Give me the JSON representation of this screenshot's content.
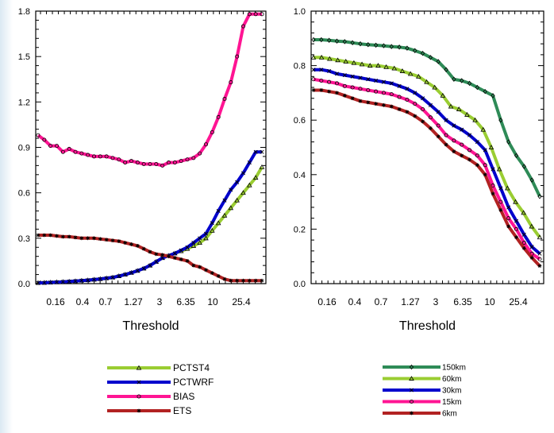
{
  "chart_data": [
    {
      "type": "line",
      "title": "",
      "xlabel": "Threshold",
      "ylabel": "",
      "x_tick_labels": [
        "0.16",
        "0.4",
        "0.7",
        "1.27",
        "3",
        "6.35",
        "10",
        "25.4"
      ],
      "y_ticks": [
        "0.0",
        "0.3",
        "0.6",
        "0.9",
        "1.2",
        "1.5",
        "1.8"
      ],
      "ylim": [
        0,
        1.8
      ],
      "grid": false,
      "legend_position": "below",
      "series": [
        {
          "name": "PCTST4",
          "color": "#9acd32",
          "marker": "triangle",
          "values": [
            0.005,
            0.006,
            0.008,
            0.01,
            0.012,
            0.014,
            0.017,
            0.02,
            0.023,
            0.027,
            0.031,
            0.036,
            0.041,
            0.05,
            0.06,
            0.072,
            0.085,
            0.1,
            0.12,
            0.145,
            0.17,
            0.185,
            0.2,
            0.215,
            0.23,
            0.25,
            0.27,
            0.3,
            0.35,
            0.4,
            0.45,
            0.5,
            0.55,
            0.6,
            0.65,
            0.7,
            0.77
          ]
        },
        {
          "name": "PCTWRF",
          "color": "#0000cd",
          "marker": "x",
          "values": [
            0.005,
            0.006,
            0.008,
            0.01,
            0.012,
            0.014,
            0.017,
            0.02,
            0.023,
            0.027,
            0.031,
            0.036,
            0.041,
            0.05,
            0.06,
            0.072,
            0.085,
            0.1,
            0.12,
            0.145,
            0.17,
            0.185,
            0.2,
            0.22,
            0.24,
            0.27,
            0.3,
            0.33,
            0.4,
            0.48,
            0.55,
            0.62,
            0.67,
            0.73,
            0.8,
            0.87,
            0.87
          ]
        },
        {
          "name": "BIAS",
          "color": "#ff1493",
          "marker": "circle",
          "values": [
            0.98,
            0.95,
            0.91,
            0.91,
            0.87,
            0.89,
            0.87,
            0.86,
            0.85,
            0.84,
            0.84,
            0.84,
            0.83,
            0.82,
            0.8,
            0.81,
            0.8,
            0.79,
            0.79,
            0.79,
            0.78,
            0.8,
            0.8,
            0.81,
            0.82,
            0.83,
            0.86,
            0.92,
            1.0,
            1.1,
            1.22,
            1.33,
            1.5,
            1.7,
            1.78,
            1.78,
            1.78
          ]
        },
        {
          "name": "ETS",
          "color": "#b22222",
          "marker": "asterisk",
          "values": [
            0.32,
            0.32,
            0.32,
            0.315,
            0.31,
            0.31,
            0.305,
            0.3,
            0.3,
            0.3,
            0.295,
            0.29,
            0.285,
            0.28,
            0.27,
            0.26,
            0.25,
            0.23,
            0.21,
            0.195,
            0.19,
            0.18,
            0.17,
            0.16,
            0.15,
            0.12,
            0.11,
            0.09,
            0.07,
            0.05,
            0.03,
            0.02,
            0.02,
            0.02,
            0.02,
            0.02,
            0.02
          ]
        }
      ]
    },
    {
      "type": "line",
      "title": "",
      "xlabel": "Threshold",
      "ylabel": "",
      "x_tick_labels": [
        "0.16",
        "0.4",
        "0.7",
        "1.27",
        "3",
        "6.35",
        "10",
        "25.4"
      ],
      "y_ticks": [
        "0.0",
        "0.2",
        "0.4",
        "0.6",
        "0.8",
        "1.0"
      ],
      "ylim": [
        0,
        1.0
      ],
      "grid": false,
      "legend_position": "below",
      "series": [
        {
          "name": "150km",
          "color": "#2e8b57",
          "marker": "diamond",
          "values": [
            0.895,
            0.895,
            0.893,
            0.89,
            0.888,
            0.884,
            0.88,
            0.877,
            0.875,
            0.873,
            0.87,
            0.868,
            0.864,
            0.855,
            0.845,
            0.83,
            0.815,
            0.785,
            0.75,
            0.745,
            0.735,
            0.72,
            0.705,
            0.69,
            0.6,
            0.52,
            0.47,
            0.43,
            0.38,
            0.32
          ]
        },
        {
          "name": "60km",
          "color": "#9acd32",
          "marker": "triangle",
          "values": [
            0.83,
            0.83,
            0.825,
            0.82,
            0.815,
            0.81,
            0.805,
            0.8,
            0.8,
            0.795,
            0.79,
            0.78,
            0.77,
            0.76,
            0.74,
            0.72,
            0.69,
            0.65,
            0.64,
            0.62,
            0.6,
            0.565,
            0.5,
            0.42,
            0.35,
            0.3,
            0.26,
            0.21,
            0.17
          ]
        },
        {
          "name": "30km",
          "color": "#0000cd",
          "marker": "x",
          "values": [
            0.785,
            0.785,
            0.78,
            0.77,
            0.765,
            0.76,
            0.755,
            0.75,
            0.745,
            0.74,
            0.735,
            0.725,
            0.715,
            0.7,
            0.68,
            0.655,
            0.63,
            0.6,
            0.58,
            0.565,
            0.545,
            0.52,
            0.49,
            0.42,
            0.35,
            0.28,
            0.23,
            0.18,
            0.135,
            0.11
          ]
        },
        {
          "name": "15km",
          "color": "#ff1493",
          "marker": "circle",
          "values": [
            0.75,
            0.745,
            0.74,
            0.735,
            0.725,
            0.72,
            0.715,
            0.71,
            0.705,
            0.7,
            0.695,
            0.685,
            0.675,
            0.66,
            0.64,
            0.61,
            0.58,
            0.545,
            0.525,
            0.51,
            0.49,
            0.47,
            0.435,
            0.36,
            0.3,
            0.24,
            0.2,
            0.15,
            0.11,
            0.09
          ]
        },
        {
          "name": "6km",
          "color": "#b22222",
          "marker": "asterisk",
          "values": [
            0.71,
            0.71,
            0.705,
            0.7,
            0.69,
            0.68,
            0.67,
            0.665,
            0.66,
            0.655,
            0.65,
            0.64,
            0.63,
            0.615,
            0.595,
            0.57,
            0.54,
            0.51,
            0.485,
            0.47,
            0.455,
            0.435,
            0.4,
            0.33,
            0.27,
            0.21,
            0.17,
            0.13,
            0.095,
            0.065
          ]
        }
      ]
    }
  ]
}
